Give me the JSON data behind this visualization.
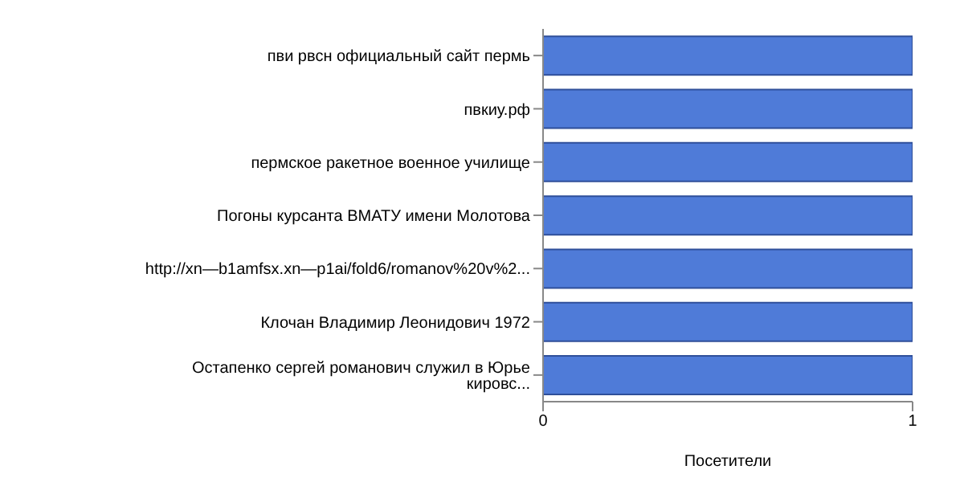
{
  "chart_data": {
    "type": "bar",
    "orientation": "horizontal",
    "xlabel": "Посетители",
    "categories": [
      "пви рвсн официальный сайт пермь",
      "пвкиу.рф",
      "пермское ракетное военное училище",
      "Погоны курсанта ВМАТУ имени Молотова",
      "http://xn—b1amfsx.xn—p1ai/fold6/romanov%20v%2...",
      "Клочан Владимир Леонидович 1972",
      "Остапенко сергей романович служил в Юрье кировс..."
    ],
    "values": [
      1,
      1,
      1,
      1,
      1,
      1,
      1
    ],
    "color": "#4f7bd8",
    "xlim": [
      0,
      1
    ],
    "xticks": [
      0,
      1
    ],
    "legend": false
  }
}
